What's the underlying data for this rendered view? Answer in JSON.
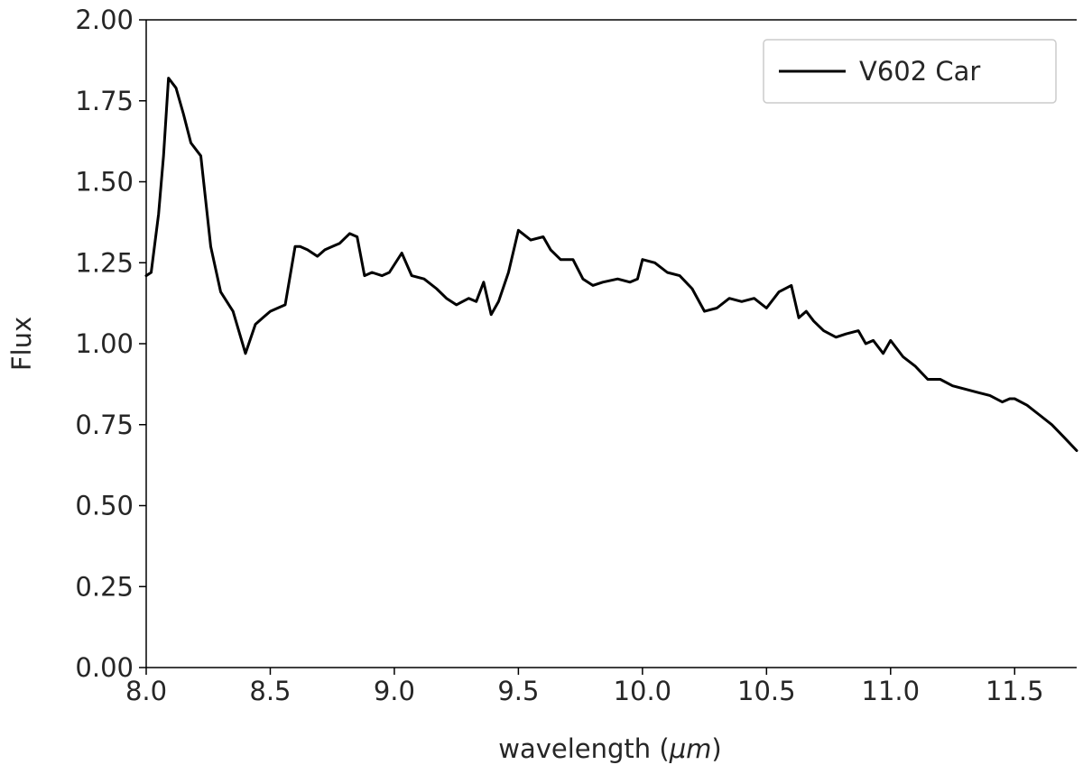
{
  "chart_data": {
    "type": "line",
    "title": "",
    "xlabel": "wavelength (",
    "xlabel_symbol": "μm",
    "xlabel_close": ")",
    "ylabel": "Flux",
    "xlim": [
      8.0,
      11.75
    ],
    "ylim": [
      0.0,
      2.0
    ],
    "grid": false,
    "legend_position": "upper right",
    "x_ticks": [
      8.0,
      8.5,
      9.0,
      9.5,
      10.0,
      10.5,
      11.0,
      11.5
    ],
    "x_tick_labels": [
      "8.0",
      "8.5",
      "9.0",
      "9.5",
      "10.0",
      "10.5",
      "11.0",
      "11.5"
    ],
    "y_ticks": [
      0.0,
      0.25,
      0.5,
      0.75,
      1.0,
      1.25,
      1.5,
      1.75,
      2.0
    ],
    "y_tick_labels": [
      "0.00",
      "0.25",
      "0.50",
      "0.75",
      "1.00",
      "1.25",
      "1.50",
      "1.75",
      "2.00"
    ],
    "series": [
      {
        "name": "V602 Car",
        "color": "#000000",
        "x": [
          8.0,
          8.02,
          8.05,
          8.07,
          8.09,
          8.12,
          8.15,
          8.18,
          8.22,
          8.26,
          8.3,
          8.35,
          8.4,
          8.44,
          8.47,
          8.5,
          8.53,
          8.56,
          8.6,
          8.62,
          8.65,
          8.69,
          8.72,
          8.75,
          8.78,
          8.82,
          8.85,
          8.88,
          8.91,
          8.95,
          8.98,
          9.03,
          9.07,
          9.12,
          9.17,
          9.21,
          9.25,
          9.3,
          9.33,
          9.36,
          9.39,
          9.42,
          9.46,
          9.5,
          9.55,
          9.6,
          9.63,
          9.67,
          9.72,
          9.76,
          9.8,
          9.84,
          9.9,
          9.95,
          9.98,
          10.0,
          10.05,
          10.1,
          10.15,
          10.2,
          10.25,
          10.3,
          10.35,
          10.4,
          10.45,
          10.5,
          10.55,
          10.6,
          10.63,
          10.66,
          10.69,
          10.73,
          10.78,
          10.82,
          10.87,
          10.9,
          10.93,
          10.97,
          11.0,
          11.05,
          11.1,
          11.15,
          11.2,
          11.25,
          11.3,
          11.35,
          11.4,
          11.45,
          11.48,
          11.5,
          11.55,
          11.6,
          11.65,
          11.7,
          11.75
        ],
        "y": [
          1.21,
          1.22,
          1.4,
          1.58,
          1.82,
          1.79,
          1.71,
          1.62,
          1.58,
          1.3,
          1.16,
          1.1,
          0.97,
          1.06,
          1.08,
          1.1,
          1.11,
          1.12,
          1.3,
          1.3,
          1.29,
          1.27,
          1.29,
          1.3,
          1.31,
          1.34,
          1.33,
          1.21,
          1.22,
          1.21,
          1.22,
          1.28,
          1.21,
          1.2,
          1.17,
          1.14,
          1.12,
          1.14,
          1.13,
          1.19,
          1.09,
          1.13,
          1.22,
          1.35,
          1.32,
          1.33,
          1.29,
          1.26,
          1.26,
          1.2,
          1.18,
          1.19,
          1.2,
          1.19,
          1.2,
          1.26,
          1.25,
          1.22,
          1.21,
          1.17,
          1.1,
          1.11,
          1.14,
          1.13,
          1.14,
          1.11,
          1.16,
          1.18,
          1.08,
          1.1,
          1.07,
          1.04,
          1.02,
          1.03,
          1.04,
          1.0,
          1.01,
          0.97,
          1.01,
          0.96,
          0.93,
          0.89,
          0.89,
          0.87,
          0.86,
          0.85,
          0.84,
          0.82,
          0.83,
          0.83,
          0.81,
          0.78,
          0.75,
          0.71,
          0.67
        ]
      }
    ]
  }
}
